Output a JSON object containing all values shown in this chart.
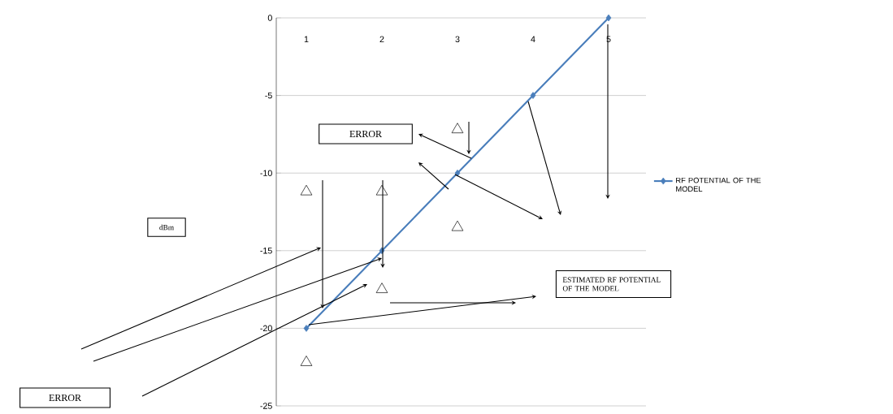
{
  "chart_data": {
    "type": "line",
    "categories": [
      "1",
      "2",
      "3",
      "4",
      "5"
    ],
    "series": [
      {
        "name": "RF POTENTIAL OF THE MODEL",
        "color": "#4a7ebb",
        "values": [
          -20,
          -15,
          -10,
          -5,
          0
        ],
        "marker": "diamond"
      },
      {
        "type": "scatter",
        "color": "#000000",
        "marker": "triangle",
        "x": [
          "1",
          "1",
          "2",
          "2",
          "3",
          "3"
        ],
        "values": [
          -22.2,
          -11.2,
          -11.2,
          -17.5,
          -13.5,
          -7.2
        ]
      }
    ],
    "ylim": [
      -25,
      0
    ],
    "yticks": [
      -25,
      -20,
      -15,
      -10,
      -5,
      0
    ],
    "grid": "y",
    "legend": "right",
    "annotations": [
      "ERROR",
      "ERROR",
      "ESTIMATED RF POTENTIAL OF THE MODEL",
      "dBm"
    ]
  }
}
